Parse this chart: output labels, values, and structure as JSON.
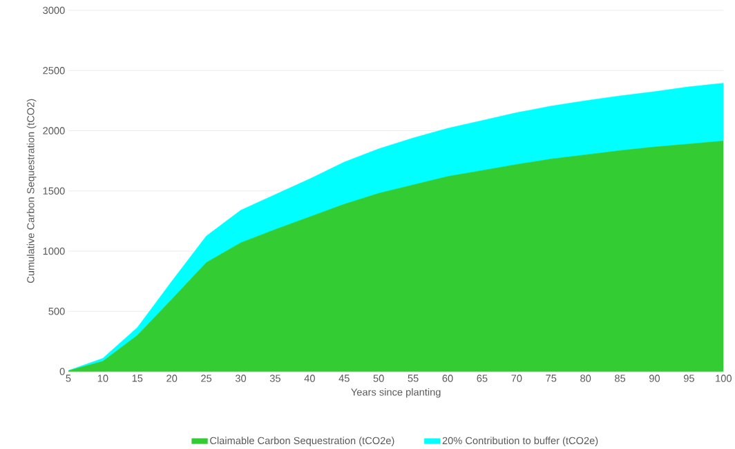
{
  "chart_data": {
    "type": "area",
    "stacked": true,
    "xlabel": "Years since planting",
    "ylabel": "Cumulative Carbon Sequestration (tCO2)",
    "x": [
      5,
      10,
      15,
      20,
      25,
      30,
      35,
      40,
      45,
      50,
      55,
      60,
      65,
      70,
      75,
      80,
      85,
      90,
      95,
      100
    ],
    "series": [
      {
        "name": "Claimable Carbon Sequestration (tCO2e)",
        "color": "#33cc33",
        "values": [
          6,
          85,
          300,
          600,
          905,
          1070,
          1180,
          1285,
          1390,
          1480,
          1550,
          1620,
          1670,
          1720,
          1765,
          1800,
          1835,
          1865,
          1890,
          1915
        ]
      },
      {
        "name": "20% Contribution to buffer (tCO2e)",
        "color": "#00ffff",
        "values": [
          2,
          25,
          65,
          150,
          220,
          270,
          290,
          315,
          350,
          370,
          390,
          400,
          415,
          430,
          440,
          450,
          455,
          460,
          475,
          480
        ]
      }
    ],
    "xlim": [
      5,
      100
    ],
    "xticks": [
      5,
      10,
      15,
      20,
      25,
      30,
      35,
      40,
      45,
      50,
      55,
      60,
      65,
      70,
      75,
      80,
      85,
      90,
      95,
      100
    ],
    "ylim": [
      0,
      3000
    ],
    "yticks": [
      0,
      500,
      1000,
      1500,
      2000,
      2500,
      3000
    ],
    "grid": "y",
    "legend": "bottom",
    "marker": "none"
  }
}
